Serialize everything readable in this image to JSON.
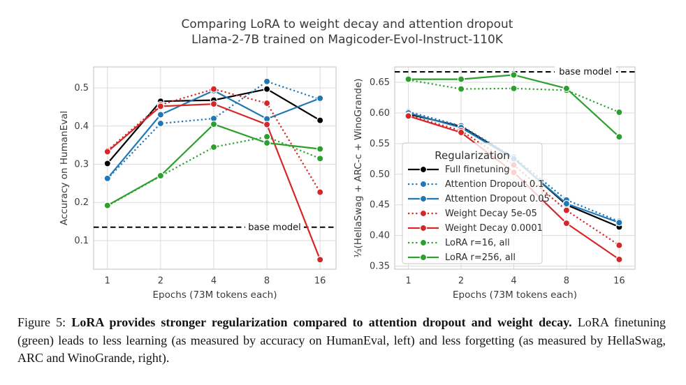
{
  "figure_title": {
    "line1": "Comparing LoRA to weight decay and attention dropout",
    "line2": "Llama-2-7B trained on Magicoder-Evol-Instruct-110K"
  },
  "colors": {
    "black": "#000000",
    "blue": "#1f77b4",
    "red": "#d62728",
    "green": "#2ca02c",
    "grid": "#dadada",
    "spine": "#cccccc",
    "tick_text": "#3d3d3d",
    "axis_text": "#3a3a3a",
    "title_text": "#3a3a3a",
    "legend_text": "#2e2e2e",
    "baseline": "#000000"
  },
  "chart_data": [
    {
      "type": "line",
      "xscale": "log2",
      "xlabel": "Epochs (73M tokens each)",
      "ylabel": "Accuracy on HumanEval",
      "x": [
        1,
        2,
        4,
        8,
        16
      ],
      "xtick_labels": [
        "1",
        "2",
        "4",
        "8",
        "16"
      ],
      "yticks": [
        0.1,
        0.2,
        0.3,
        0.4,
        0.5
      ],
      "ytick_labels": [
        "0.1",
        "0.2",
        "0.3",
        "0.4",
        "0.5"
      ],
      "ylim": [
        0.025,
        0.555
      ],
      "grid": true,
      "baseline": {
        "value": 0.135,
        "label": "base model"
      },
      "series": [
        {
          "name": "Full finetuning",
          "color": "black",
          "style": "solid",
          "values": [
            0.302,
            0.465,
            0.468,
            0.497,
            0.415
          ]
        },
        {
          "name": "Attention Dropout 0.1",
          "color": "blue",
          "style": "dotted",
          "values": [
            0.262,
            0.407,
            0.42,
            0.517,
            0.47
          ]
        },
        {
          "name": "Attention Dropout 0.05",
          "color": "blue",
          "style": "solid",
          "values": [
            0.263,
            0.43,
            0.493,
            0.419,
            0.473
          ]
        },
        {
          "name": "Weight Decay 5e-05",
          "color": "red",
          "style": "dotted",
          "values": [
            0.336,
            0.456,
            0.497,
            0.46,
            0.227
          ]
        },
        {
          "name": "Weight Decay 0.0001",
          "color": "red",
          "style": "solid",
          "values": [
            0.333,
            0.452,
            0.458,
            0.404,
            0.05
          ]
        },
        {
          "name": "LoRA r=16, all",
          "color": "green",
          "style": "dotted",
          "values": [
            0.191,
            0.269,
            0.345,
            0.372,
            0.315
          ]
        },
        {
          "name": "LoRA r=256, all",
          "color": "green",
          "style": "solid",
          "values": [
            0.192,
            0.27,
            0.405,
            0.356,
            0.34
          ]
        }
      ]
    },
    {
      "type": "line",
      "xscale": "log2",
      "xlabel": "Epochs (73M tokens each)",
      "ylabel": "⅓(HellaSwag + ARC-c + WinoGrande)",
      "x": [
        1,
        2,
        4,
        8,
        16
      ],
      "xtick_labels": [
        "1",
        "2",
        "4",
        "8",
        "16"
      ],
      "yticks": [
        0.35,
        0.4,
        0.45,
        0.5,
        0.55,
        0.6,
        0.65
      ],
      "ytick_labels": [
        "0.35",
        "0.40",
        "0.45",
        "0.50",
        "0.55",
        "0.60",
        "0.65"
      ],
      "ylim": [
        0.345,
        0.675
      ],
      "grid": true,
      "baseline": {
        "value": 0.667,
        "label": "base model"
      },
      "legend": {
        "title": "Regularization"
      },
      "series": [
        {
          "name": "Full finetuning",
          "color": "black",
          "style": "solid",
          "values": [
            0.598,
            0.578,
            0.526,
            0.45,
            0.414
          ]
        },
        {
          "name": "Attention Dropout 0.1",
          "color": "blue",
          "style": "dotted",
          "values": [
            0.602,
            0.579,
            0.528,
            0.458,
            0.423
          ]
        },
        {
          "name": "Attention Dropout 0.05",
          "color": "blue",
          "style": "solid",
          "values": [
            0.6,
            0.576,
            0.525,
            0.452,
            0.421
          ]
        },
        {
          "name": "Weight Decay 5e-05",
          "color": "red",
          "style": "dotted",
          "values": [
            0.596,
            0.571,
            0.515,
            0.441,
            0.384
          ]
        },
        {
          "name": "Weight Decay 0.0001",
          "color": "red",
          "style": "solid",
          "values": [
            0.595,
            0.568,
            0.503,
            0.42,
            0.361
          ]
        },
        {
          "name": "LoRA r=16, all",
          "color": "green",
          "style": "dotted",
          "values": [
            0.654,
            0.639,
            0.64,
            0.637,
            0.601
          ]
        },
        {
          "name": "LoRA r=256, all",
          "color": "green",
          "style": "solid",
          "values": [
            0.655,
            0.655,
            0.662,
            0.64,
            0.561
          ]
        }
      ]
    }
  ],
  "caption": {
    "prefix": "Figure 5: ",
    "bold": "LoRA provides stronger regularization compared to attention dropout and weight decay.",
    "text": " LoRA finetuning (green) leads to less learning (as measured by accuracy on HumanEval, left) and less forgetting (as measured by HellaSwag, ARC and WinoGrande, right)."
  }
}
